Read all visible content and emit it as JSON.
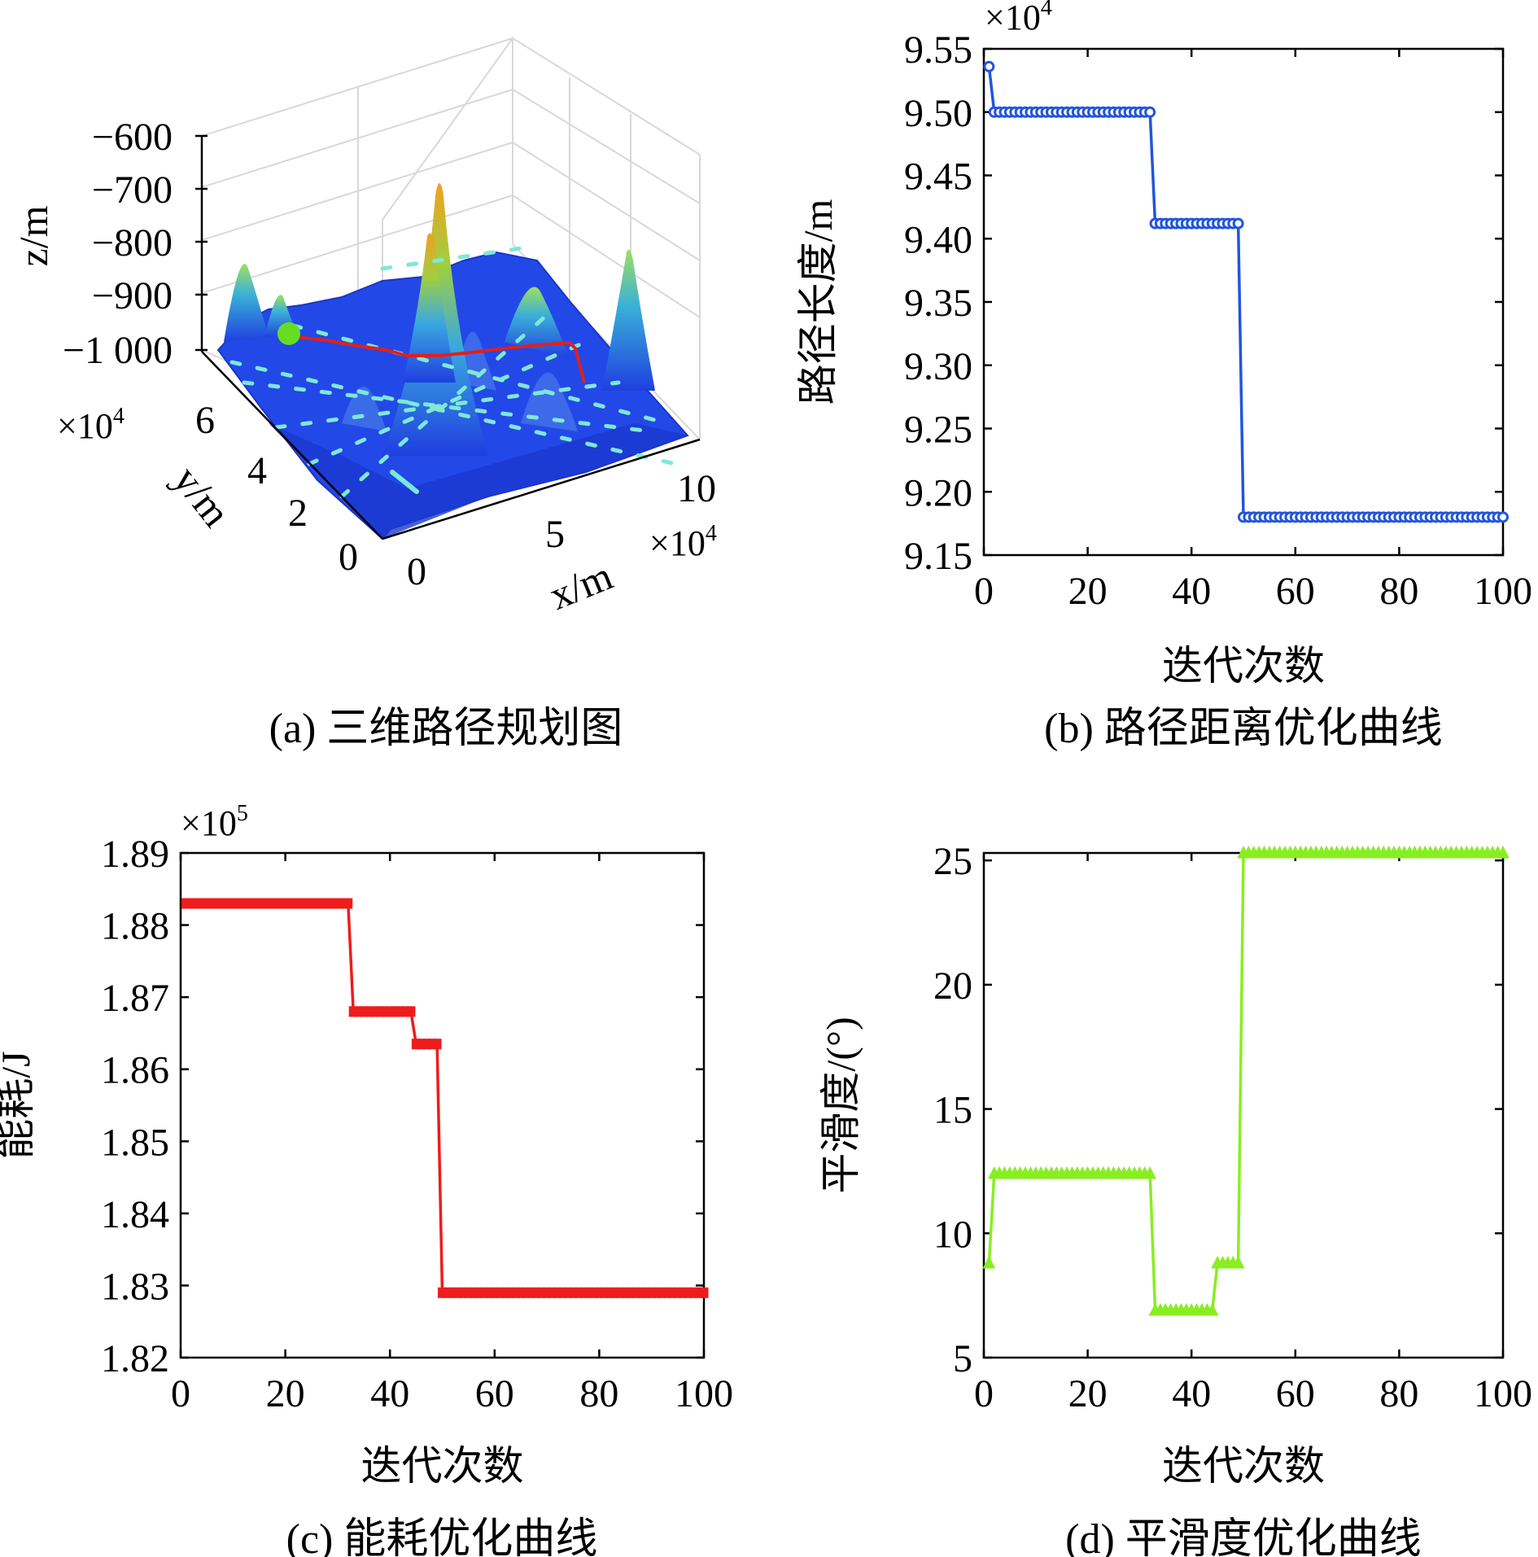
{
  "chart_data": [
    {
      "id": "a",
      "type": "surface3d",
      "caption": "(a) 三维路径规划图",
      "xlabel": "x/m",
      "ylabel": "y/m",
      "zlabel": "z/m",
      "x_ticks": [
        "0",
        "5",
        "10"
      ],
      "y_ticks": [
        "0",
        "2",
        "4",
        "6"
      ],
      "z_ticks": [
        "−600",
        "−700",
        "−800",
        "−900",
        "−1 000"
      ],
      "x_multiplier": "×10",
      "x_exp": "4",
      "y_multiplier": "×10",
      "y_exp": "4",
      "colors": {
        "surface": "#1f3fe0",
        "peak": "#f0a020",
        "path": "#e0201c",
        "start": "#66dd22",
        "arrows": "#7fe8d8"
      }
    },
    {
      "id": "b",
      "type": "line",
      "caption": "(b) 路径距离优化曲线",
      "xlabel": "迭代次数",
      "ylabel": "路径长度/m",
      "multiplier": "×10",
      "exp": "4",
      "xlim": [
        0,
        100
      ],
      "ylim": [
        9.15,
        9.55
      ],
      "x_ticks": [
        "0",
        "20",
        "40",
        "60",
        "80",
        "100"
      ],
      "y_ticks": [
        "9.15",
        "9.20",
        "9.25",
        "9.30",
        "9.35",
        "9.40",
        "9.45",
        "9.50",
        "9.55"
      ],
      "marker": "circle",
      "color": "#2255dd",
      "steps": [
        [
          1,
          9.536
        ],
        [
          2,
          9.5
        ],
        [
          33,
          9.412
        ],
        [
          50,
          9.18
        ]
      ],
      "x_end": 100
    },
    {
      "id": "c",
      "type": "line",
      "caption": "(c) 能耗优化曲线",
      "xlabel": "迭代次数",
      "ylabel": "能耗/J",
      "multiplier": "×10",
      "exp": "5",
      "xlim": [
        0,
        100
      ],
      "ylim": [
        1.82,
        1.89
      ],
      "x_ticks": [
        "0",
        "20",
        "40",
        "60",
        "80",
        "100"
      ],
      "y_ticks": [
        "1.82",
        "1.83",
        "1.84",
        "1.85",
        "1.86",
        "1.87",
        "1.88",
        "1.89"
      ],
      "marker": "square",
      "color": "#ee1c1c",
      "steps": [
        [
          1,
          1.883
        ],
        [
          33,
          1.868
        ],
        [
          45,
          1.8635
        ],
        [
          50,
          1.829
        ]
      ],
      "x_end": 100
    },
    {
      "id": "d",
      "type": "line",
      "caption": "(d) 平滑度优化曲线",
      "xlabel": "迭代次数",
      "ylabel": "平滑度/(°)",
      "xlim": [
        0,
        100
      ],
      "ylim": [
        5,
        25.3
      ],
      "x_ticks": [
        "0",
        "20",
        "40",
        "60",
        "80",
        "100"
      ],
      "y_ticks": [
        "5",
        "10",
        "15",
        "20",
        "25"
      ],
      "marker": "triangle",
      "color": "#88ee22",
      "steps": [
        [
          1,
          8.8
        ],
        [
          2,
          12.4
        ],
        [
          33,
          6.9
        ],
        [
          45,
          8.8
        ],
        [
          50,
          25.4
        ]
      ],
      "x_end": 100
    }
  ]
}
